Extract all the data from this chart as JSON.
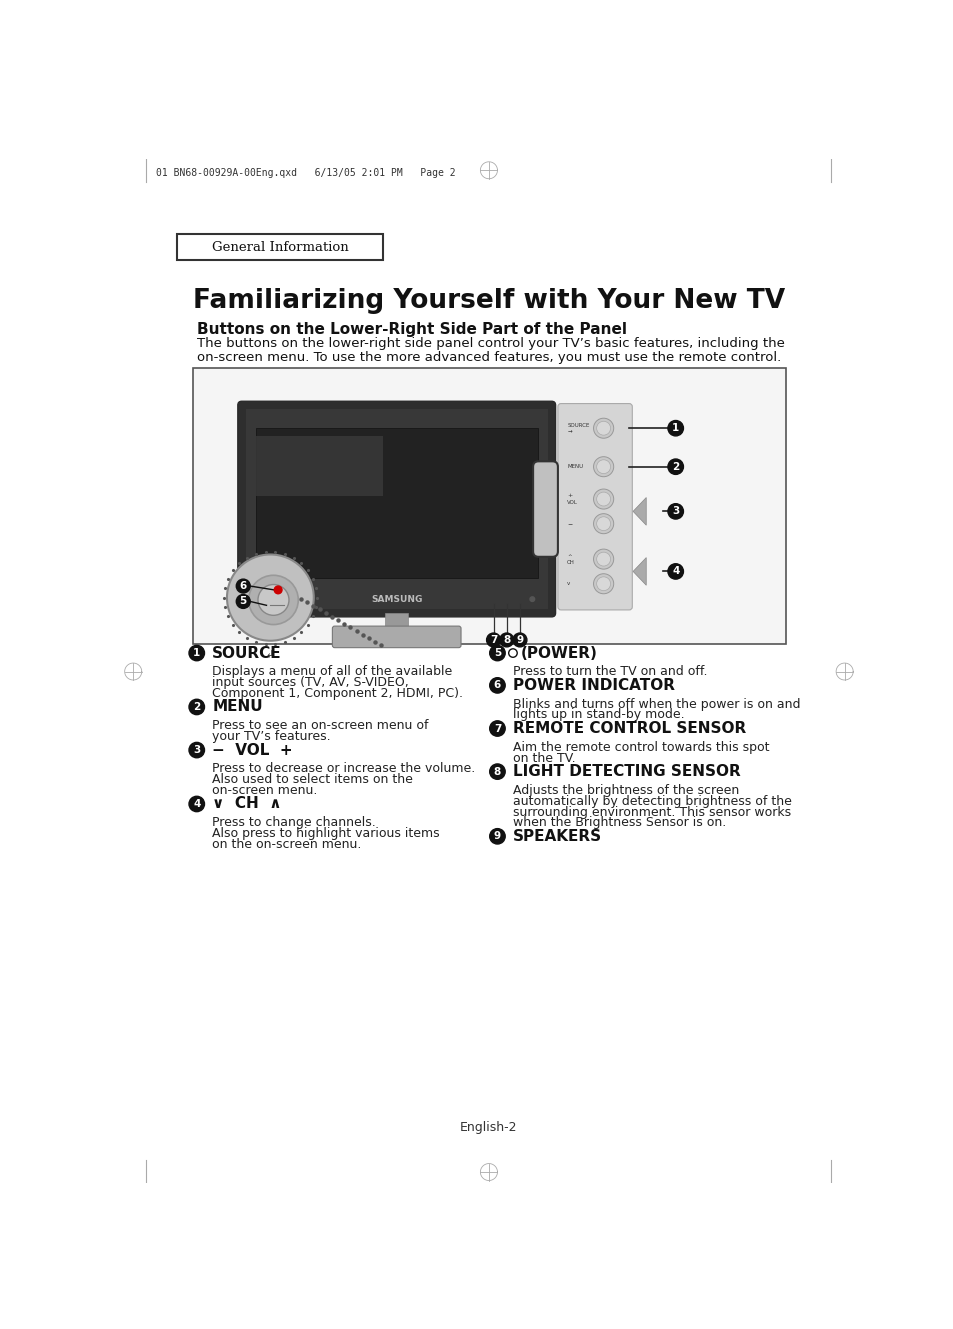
{
  "page_header": "01 BN68-00929A-00Eng.qxd   6/13/05 2:01 PM   Page 2",
  "section_label": "GENERAL INFORMATION",
  "title": "Familiarizing Yourself with Your New TV",
  "subtitle": "Buttons on the Lower-Right Side Part of the Panel",
  "intro_line1": "The buttons on the lower-right side panel control your TV’s basic features, including the",
  "intro_line2": "on-screen menu. To use the more advanced features, you must use the remote control.",
  "footer": "English-2",
  "items_left": [
    {
      "num": "1",
      "heading": "SOURCE",
      "body_lines": [
        "Displays a menu of all of the available",
        "input sources (TV, AV, S-VIDEO,",
        "Component 1, Component 2, HDMI, PC)."
      ]
    },
    {
      "num": "2",
      "heading": "MENU",
      "body_lines": [
        "Press to see an on-screen menu of",
        "your TV’s features."
      ]
    },
    {
      "num": "3",
      "heading": "−  VOL  +",
      "body_lines": [
        "Press to decrease or increase the volume.",
        "Also used to select items on the",
        "on-screen menu."
      ]
    },
    {
      "num": "4",
      "heading": "∨  CH  ∧",
      "body_lines": [
        "Press to change channels.",
        "Also press to highlight various items",
        "on the on-screen menu."
      ]
    }
  ],
  "items_right": [
    {
      "num": "5",
      "heading": "(POWER)",
      "body_lines": [
        "Press to turn the TV on and off."
      ]
    },
    {
      "num": "6",
      "heading": "POWER INDICATOR",
      "body_lines": [
        "Blinks and turns off when the power is on and",
        "lights up in stand-by mode."
      ]
    },
    {
      "num": "7",
      "heading": "REMOTE CONTROL SENSOR",
      "body_lines": [
        "Aim the remote control towards this spot",
        "on the TV."
      ]
    },
    {
      "num": "8",
      "heading": "LIGHT DETECTING SENSOR",
      "body_lines": [
        "Adjusts the brightness of the screen",
        "automatically by detecting brightness of the",
        "surrounding environment. This sensor works",
        "when the Brightness Sensor is on."
      ]
    },
    {
      "num": "9",
      "heading": "SPEAKERS",
      "body_lines": []
    }
  ],
  "bg_color": "#ffffff",
  "text_color": "#000000"
}
